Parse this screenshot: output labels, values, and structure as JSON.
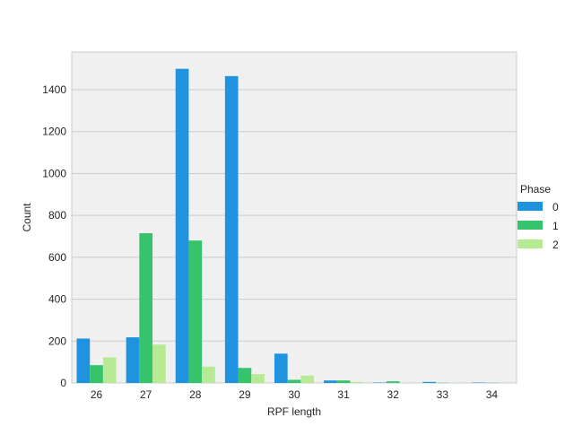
{
  "chart_data": {
    "type": "bar",
    "title": "",
    "xlabel": "RPF length",
    "ylabel": "Count",
    "categories": [
      "26",
      "27",
      "28",
      "29",
      "30",
      "31",
      "32",
      "33",
      "34"
    ],
    "ylim": [
      0,
      1580
    ],
    "yticks": [
      0,
      200,
      400,
      600,
      800,
      1000,
      1200,
      1400
    ],
    "grid": true,
    "legend": {
      "title": "Phase",
      "placement": "center-right"
    },
    "series": [
      {
        "name": "0",
        "color": "#1f93e0",
        "values": [
          212,
          218,
          1500,
          1465,
          140,
          12,
          2,
          5,
          2
        ]
      },
      {
        "name": "1",
        "color": "#35c46c",
        "values": [
          85,
          715,
          680,
          72,
          15,
          12,
          8,
          1,
          1
        ]
      },
      {
        "name": "2",
        "color": "#b8e994",
        "values": [
          122,
          183,
          78,
          42,
          35,
          5,
          1,
          1,
          0
        ]
      }
    ]
  }
}
